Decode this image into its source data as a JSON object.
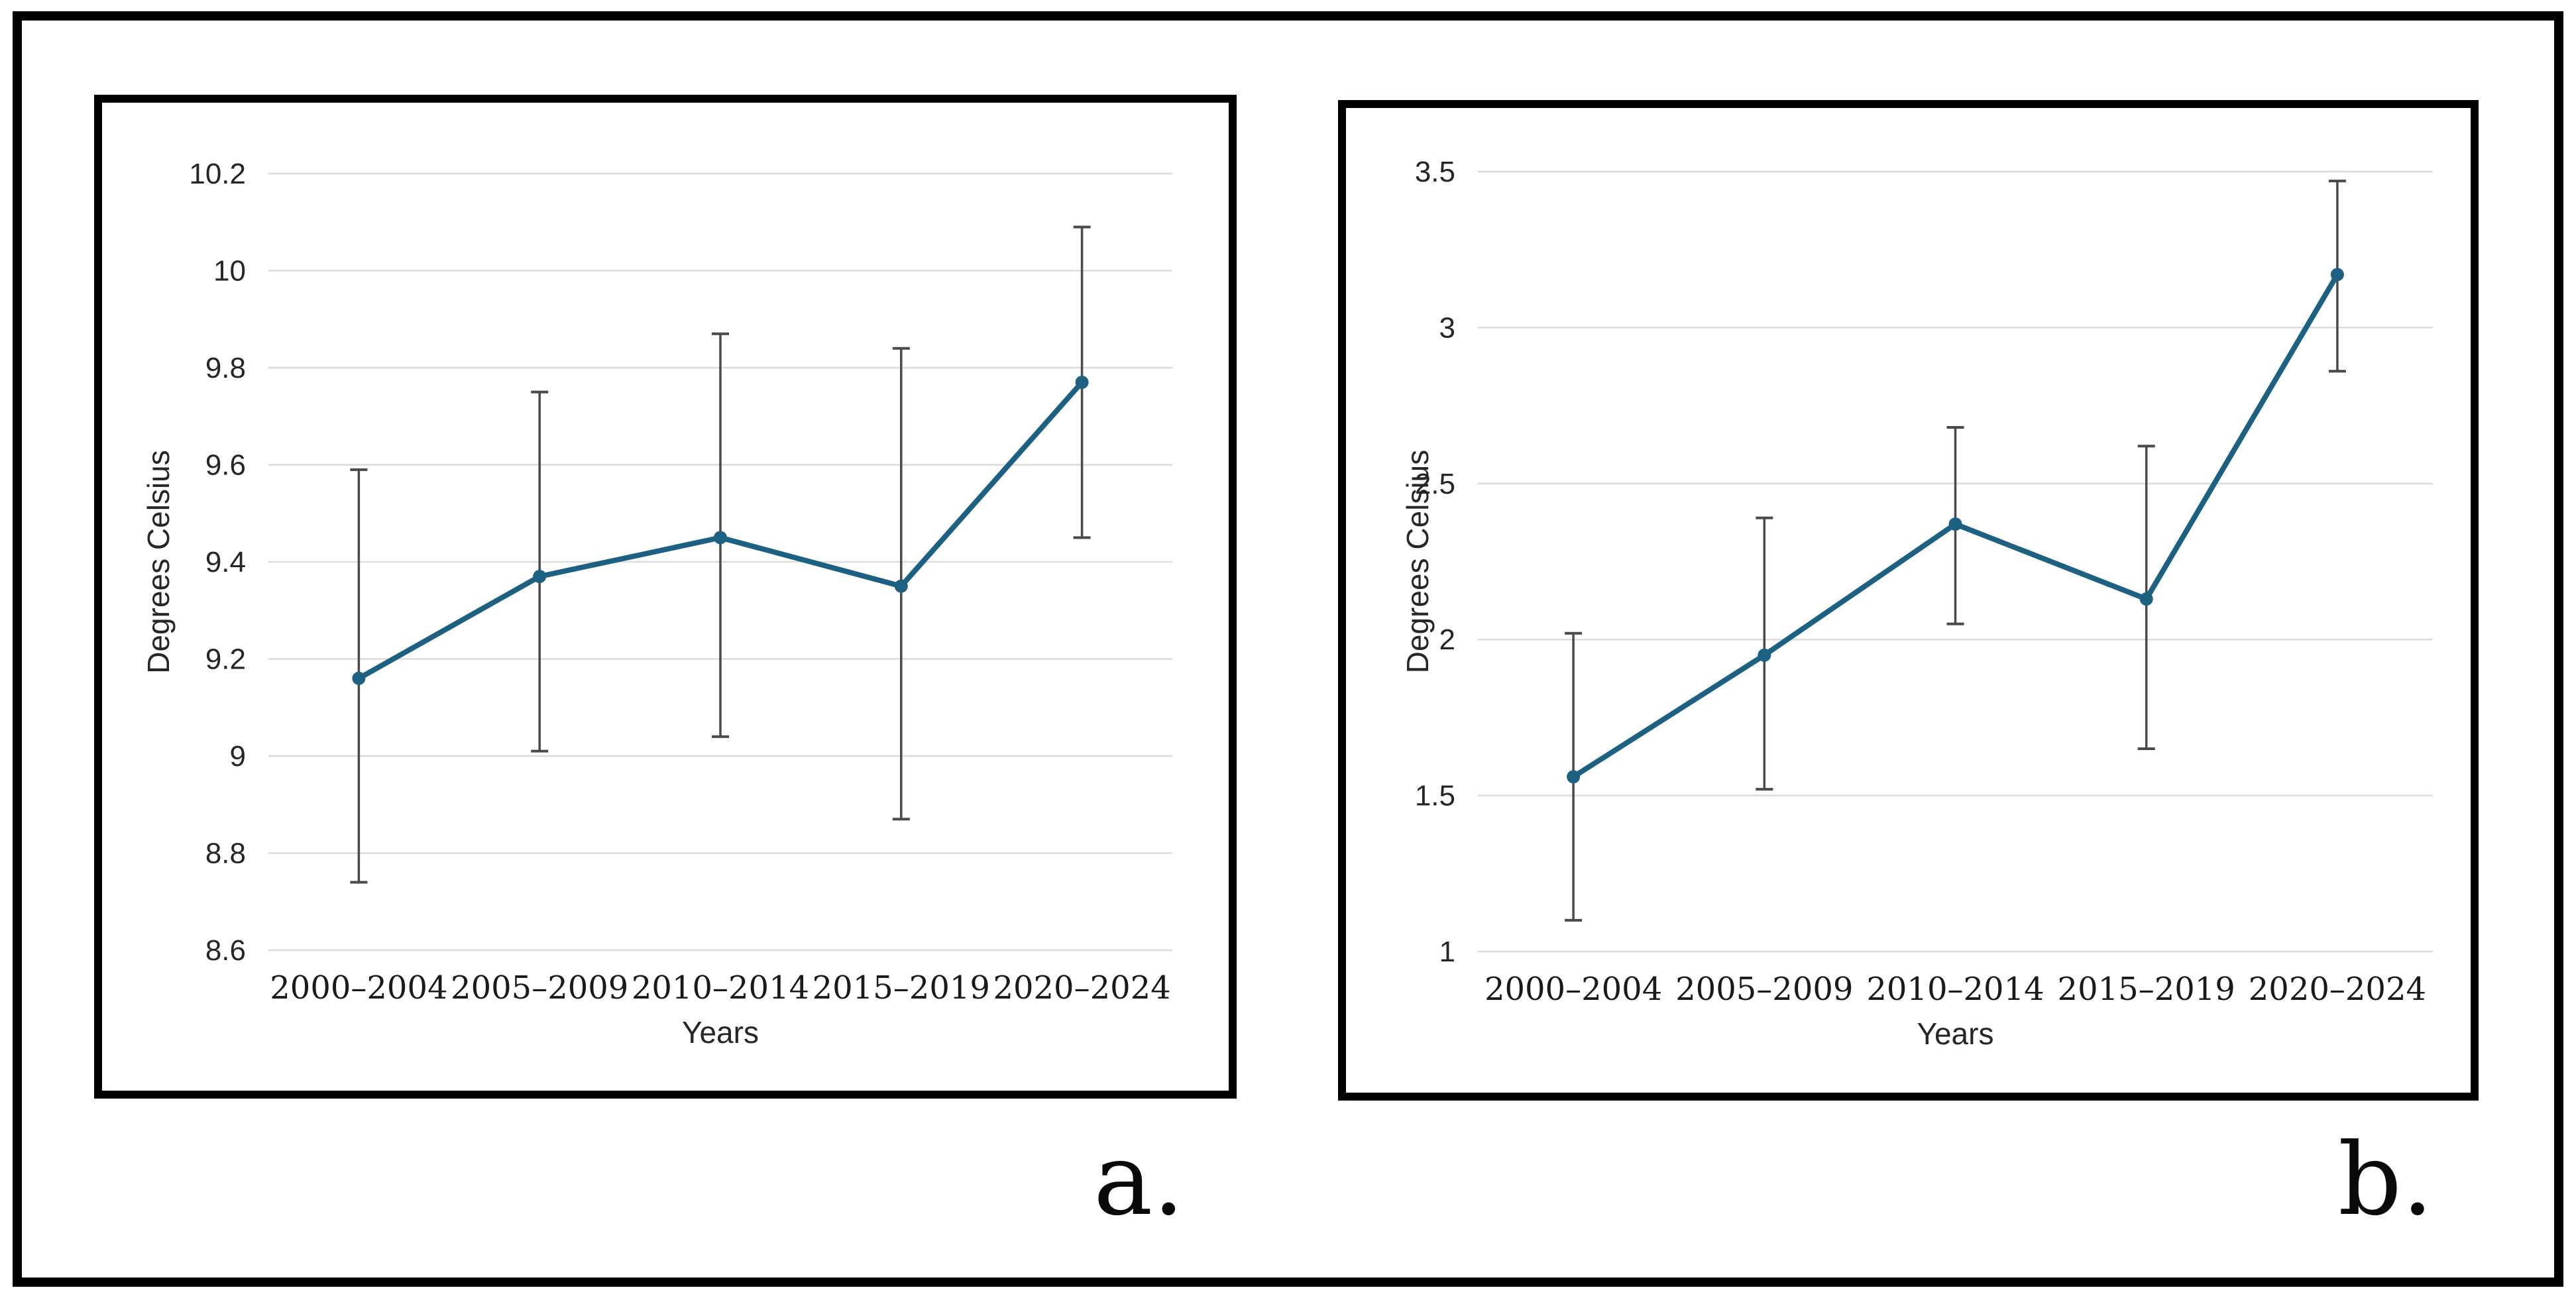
{
  "figure": {
    "panels": [
      "a.",
      "b."
    ]
  },
  "chart_data": [
    {
      "id": "a",
      "type": "line",
      "panel_label": "a.",
      "title": "",
      "xlabel": "Years",
      "ylabel": "Degrees Celsius",
      "categories": [
        "2000–2004",
        "2005–2009",
        "2010–2014",
        "2015–2019",
        "2020–2024"
      ],
      "series": [
        {
          "values": [
            9.16,
            9.37,
            9.45,
            9.35,
            9.77
          ]
        }
      ],
      "error_bars": {
        "upper": [
          9.59,
          9.75,
          9.87,
          9.84,
          10.09
        ],
        "lower": [
          8.74,
          9.01,
          9.04,
          8.87,
          9.45
        ]
      },
      "ylim": [
        8.6,
        10.2
      ],
      "yticks": [
        {
          "value": 10.2,
          "label": "10.2"
        },
        {
          "value": 10.0,
          "label": "10"
        },
        {
          "value": 9.8,
          "label": "9.8"
        },
        {
          "value": 9.6,
          "label": "9.6"
        },
        {
          "value": 9.4,
          "label": "9.4"
        },
        {
          "value": 9.2,
          "label": "9.2"
        },
        {
          "value": 9.0,
          "label": "9"
        },
        {
          "value": 8.8,
          "label": "8.8"
        },
        {
          "value": 8.6,
          "label": "8.6"
        }
      ],
      "grid": true,
      "legend": "none",
      "line_color": "#1c6082",
      "marker_color": "#1c6082",
      "error_bar_color": "#4a4a4a",
      "gridline_color": "#dcdcdc"
    },
    {
      "id": "b",
      "type": "line",
      "panel_label": "b.",
      "title": "",
      "xlabel": "Years",
      "ylabel": "Degrees Celsius",
      "categories": [
        "2000–2004",
        "2005–2009",
        "2010–2014",
        "2015–2019",
        "2020–2024"
      ],
      "series": [
        {
          "values": [
            1.56,
            1.95,
            2.37,
            2.13,
            3.17
          ]
        }
      ],
      "error_bars": {
        "upper": [
          2.02,
          2.39,
          2.68,
          2.62,
          3.47
        ],
        "lower": [
          1.1,
          1.52,
          2.05,
          1.65,
          2.86
        ]
      },
      "ylim": [
        1.0,
        3.5
      ],
      "yticks": [
        {
          "value": 3.5,
          "label": "3.5"
        },
        {
          "value": 3.0,
          "label": "3"
        },
        {
          "value": 2.5,
          "label": "2.5"
        },
        {
          "value": 2.0,
          "label": "2"
        },
        {
          "value": 1.5,
          "label": "1.5"
        },
        {
          "value": 1.0,
          "label": "1"
        }
      ],
      "grid": true,
      "legend": "none",
      "line_color": "#1c6082",
      "marker_color": "#1c6082",
      "error_bar_color": "#4a4a4a",
      "gridline_color": "#dcdcdc"
    }
  ]
}
